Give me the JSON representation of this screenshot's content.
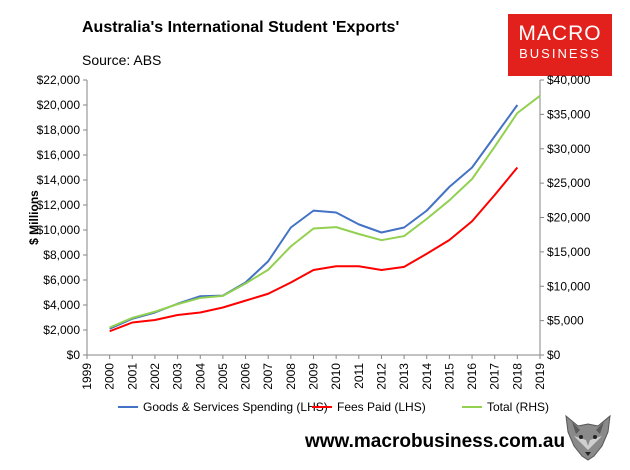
{
  "header": {
    "title": "Australia's International Student 'Exports'",
    "subtitle": "Source: ABS"
  },
  "logo": {
    "line1": "MACRO",
    "line2": "BUSINESS"
  },
  "footer": {
    "url": "www.macrobusiness.com.au"
  },
  "icons": {
    "mascot": "wolf-icon"
  },
  "colors": {
    "goods_services": "#4472c4",
    "fees": "#ff0000",
    "total": "#92d050",
    "logo_bg": "#e2211c"
  },
  "chart_data": {
    "type": "line",
    "ylabel": "$ Millions",
    "ylim_left": [
      0,
      22000
    ],
    "ylim_right": [
      0,
      40000
    ],
    "left_ticks": [
      "$0",
      "$2,000",
      "$4,000",
      "$6,000",
      "$8,000",
      "$10,000",
      "$12,000",
      "$14,000",
      "$16,000",
      "$18,000",
      "$20,000",
      "$22,000"
    ],
    "right_ticks": [
      "$0",
      "$5,000",
      "$10,000",
      "$15,000",
      "$20,000",
      "$25,000",
      "$30,000",
      "$35,000",
      "$40,000"
    ],
    "x_ticks": [
      "1999",
      "2000",
      "2001",
      "2002",
      "2003",
      "2004",
      "2005",
      "2006",
      "2007",
      "2008",
      "2009",
      "2010",
      "2011",
      "2012",
      "2013",
      "2014",
      "2015",
      "2016",
      "2017",
      "2018",
      "2019"
    ],
    "grid": false,
    "legend_position": "bottom",
    "series": [
      {
        "name": "Goods & Services Spending (LHS)",
        "axis": "left",
        "color": "#4472c4",
        "x": [
          2000,
          2001,
          2002,
          2003,
          2004,
          2005,
          2006,
          2007,
          2008,
          2009,
          2010,
          2011,
          2012,
          2013,
          2014,
          2015,
          2016,
          2017,
          2018
        ],
        "values": [
          2100,
          2900,
          3400,
          4100,
          4700,
          4750,
          5800,
          7500,
          10200,
          11550,
          11400,
          10450,
          9800,
          10200,
          11550,
          13450,
          15000,
          17500,
          20000
        ]
      },
      {
        "name": "Fees Paid (LHS)",
        "axis": "left",
        "color": "#ff0000",
        "x": [
          2000,
          2001,
          2002,
          2003,
          2004,
          2005,
          2006,
          2007,
          2008,
          2009,
          2010,
          2011,
          2012,
          2013,
          2014,
          2015,
          2016,
          2017,
          2018
        ],
        "values": [
          1900,
          2600,
          2800,
          3200,
          3400,
          3800,
          4350,
          4900,
          5800,
          6800,
          7100,
          7100,
          6800,
          7050,
          8100,
          9200,
          10700,
          12800,
          15000
        ]
      },
      {
        "name": "Total (RHS)",
        "axis": "right",
        "color": "#92d050",
        "x": [
          2000,
          2001,
          2002,
          2003,
          2004,
          2005,
          2006,
          2007,
          2008,
          2009,
          2010,
          2011,
          2012,
          2013,
          2014,
          2015,
          2016,
          2017,
          2018,
          2019
        ],
        "values": [
          4000,
          5400,
          6300,
          7400,
          8300,
          8600,
          10400,
          12400,
          15800,
          18400,
          18600,
          17600,
          16700,
          17300,
          19800,
          22500,
          25600,
          30300,
          35200,
          37700
        ]
      }
    ]
  }
}
